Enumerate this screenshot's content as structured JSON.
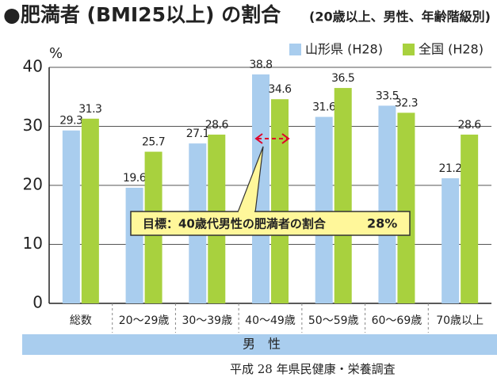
{
  "chart_data": {
    "type": "bar",
    "title": "●肥満者 (BMI25以上) の割合",
    "subtitle": "(20歳以上、男性、年齢階級別)",
    "y_label": "%",
    "x_label": "男　性",
    "source": "平成 28 年県民健康・栄養調査",
    "categories": [
      "総数",
      "20～29歳",
      "30～39歳",
      "40～49歳",
      "50～59歳",
      "60～69歳",
      "70歳以上"
    ],
    "series": [
      {
        "name": "山形県 (H28)",
        "color": "#a9cdee",
        "values": [
          29.3,
          19.6,
          27.1,
          38.8,
          31.6,
          33.5,
          21.2
        ]
      },
      {
        "name": "全国 (H28)",
        "color": "#a8d13e",
        "values": [
          31.3,
          25.7,
          28.6,
          34.6,
          36.5,
          32.3,
          28.6
        ]
      }
    ],
    "ylim": [
      0,
      40
    ],
    "yticks": [
      0,
      10,
      20,
      30,
      40
    ],
    "grid": true,
    "annotation": {
      "text": "目標：40歳代男性の肥満者の割合",
      "target": "28%"
    }
  }
}
